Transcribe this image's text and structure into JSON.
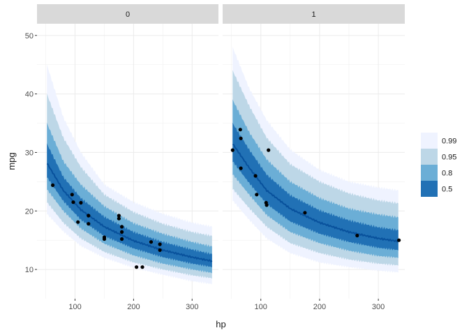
{
  "chart_data": {
    "type": "ribbon-scatter",
    "xlabel": "hp",
    "ylabel": "mpg",
    "xlim": [
      35,
      345
    ],
    "ylim": [
      5,
      52
    ],
    "x_ticks": [
      100,
      200,
      300
    ],
    "y_ticks": [
      10,
      20,
      30,
      40,
      50
    ],
    "legend": {
      "placement": "right",
      "levels": [
        "0.99",
        "0.95",
        "0.8",
        "0.5"
      ],
      "colors": [
        "#eff3ff",
        "#bdd7e7",
        "#6baed6",
        "#2171b5"
      ]
    },
    "line_color": "#08519c",
    "point_color": "#000000",
    "panels": [
      {
        "strip": "0",
        "median": {
          "x": [
            52,
            80,
            110,
            150,
            200,
            250,
            300,
            335
          ],
          "y": [
            28.2,
            23.5,
            20.2,
            17.3,
            14.9,
            13.3,
            12.1,
            11.4
          ]
        },
        "bands": {
          "0.99": {
            "lower": [
              19.5,
              16.5,
              14.0,
              12.0,
              10.3,
              9.1,
              8.0,
              7.5
            ],
            "upper": [
              45,
              36,
              30,
              24.5,
              21.5,
              19.5,
              18.0,
              17.3
            ]
          },
          "0.95": {
            "lower": [
              21.5,
              18.0,
              15.3,
              13.0,
              11.2,
              10.0,
              9.0,
              8.5
            ],
            "upper": [
              40,
              32.5,
              27.5,
              22.8,
              19.8,
              17.8,
              16.4,
              15.7
            ]
          },
          "0.8": {
            "lower": [
              23.7,
              20.0,
              17.0,
              14.4,
              12.4,
              11.0,
              10.0,
              9.4
            ],
            "upper": [
              35,
              28.5,
              24.5,
              20.8,
              17.9,
              16.1,
              14.7,
              13.9
            ]
          },
          "0.5": {
            "lower": [
              25.8,
              21.7,
              18.5,
              15.7,
              13.6,
              12.1,
              11.0,
              10.4
            ],
            "upper": [
              31.5,
              25.8,
              22.2,
              19.0,
              16.4,
              14.7,
              13.4,
              12.6
            ]
          }
        },
        "points": [
          {
            "hp": 62,
            "mpg": 24.4
          },
          {
            "hp": 95,
            "mpg": 22.8
          },
          {
            "hp": 97,
            "mpg": 21.5
          },
          {
            "hp": 105,
            "mpg": 18.1
          },
          {
            "hp": 110,
            "mpg": 21.4
          },
          {
            "hp": 123,
            "mpg": 19.2
          },
          {
            "hp": 123,
            "mpg": 17.8
          },
          {
            "hp": 150,
            "mpg": 15.5
          },
          {
            "hp": 150,
            "mpg": 15.2
          },
          {
            "hp": 175,
            "mpg": 18.7
          },
          {
            "hp": 175,
            "mpg": 19.2
          },
          {
            "hp": 180,
            "mpg": 16.4
          },
          {
            "hp": 180,
            "mpg": 17.3
          },
          {
            "hp": 180,
            "mpg": 15.2
          },
          {
            "hp": 205,
            "mpg": 10.4
          },
          {
            "hp": 215,
            "mpg": 10.4
          },
          {
            "hp": 230,
            "mpg": 14.7
          },
          {
            "hp": 245,
            "mpg": 14.3
          },
          {
            "hp": 245,
            "mpg": 13.3
          }
        ]
      },
      {
        "strip": "1",
        "median": {
          "x": [
            52,
            80,
            110,
            150,
            200,
            250,
            300,
            335
          ],
          "y": [
            31.5,
            27.4,
            23.5,
            20.4,
            18.0,
            16.4,
            15.3,
            14.8
          ]
        },
        "bands": {
          "0.99": {
            "lower": [
              21.8,
              18.5,
              15.3,
              12.8,
              11.2,
              10.4,
              9.8,
              9.5
            ],
            "upper": [
              48,
              41,
              35.5,
              30.5,
              27.0,
              25.0,
              24.0,
              23.5
            ]
          },
          "0.95": {
            "lower": [
              23.8,
              20.5,
              17.3,
              14.5,
              12.8,
              11.7,
              11.0,
              10.7
            ],
            "upper": [
              44,
              38.0,
              32.5,
              28.0,
              25.0,
              23.0,
              21.8,
              21.3
            ]
          },
          "0.8": {
            "lower": [
              26.3,
              22.8,
              19.3,
              16.4,
              14.5,
              13.2,
              12.3,
              12.0
            ],
            "upper": [
              39,
              33.5,
              28.8,
              25.0,
              22.2,
              20.4,
              19.4,
              18.9
            ]
          },
          "0.5": {
            "lower": [
              28.5,
              24.8,
              21.2,
              18.2,
              16.1,
              14.7,
              13.7,
              13.3
            ],
            "upper": [
              35,
              30.5,
              26.2,
              22.7,
              20.1,
              18.4,
              17.2,
              16.7
            ]
          }
        },
        "points": [
          {
            "hp": 52,
            "mpg": 30.4
          },
          {
            "hp": 65,
            "mpg": 33.9
          },
          {
            "hp": 66,
            "mpg": 32.4
          },
          {
            "hp": 66,
            "mpg": 27.3
          },
          {
            "hp": 91,
            "mpg": 26.0
          },
          {
            "hp": 93,
            "mpg": 22.8
          },
          {
            "hp": 109,
            "mpg": 21.4
          },
          {
            "hp": 110,
            "mpg": 21.0
          },
          {
            "hp": 113,
            "mpg": 30.4
          },
          {
            "hp": 175,
            "mpg": 19.7
          },
          {
            "hp": 264,
            "mpg": 15.8
          },
          {
            "hp": 335,
            "mpg": 15.0
          }
        ]
      }
    ]
  }
}
